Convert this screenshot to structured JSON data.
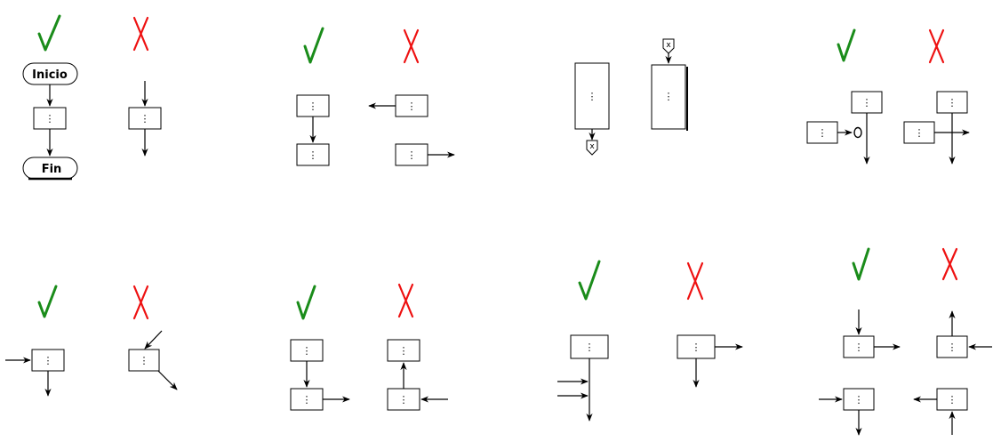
{
  "terminals": {
    "start_label": "Inicio",
    "end_label": "Fin"
  },
  "box_symbol": "⋮",
  "marks": {
    "correct_icon": "check-icon",
    "incorrect_icon": "cross-icon",
    "correct_color": "#1a8c1a",
    "incorrect_color": "#ee1111"
  },
  "connector_symbol": "x"
}
